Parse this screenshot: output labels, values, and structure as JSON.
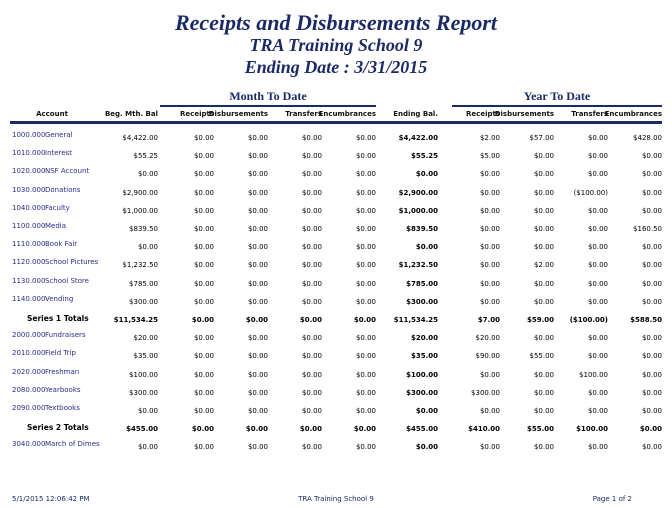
{
  "report": {
    "title": "Receipts and Disbursements Report",
    "school": "TRA Training School 9",
    "ending_date": "Ending Date :  3/31/2015"
  },
  "groups": {
    "mtd": "Month To Date",
    "ytd": "Year To Date"
  },
  "columns": [
    "Account",
    "Beg. Mth. Bal",
    "Receipts",
    "Disbursements",
    "Transfers",
    "Encumbrances",
    "Ending Bal.",
    "Receipts",
    "Disbursements",
    "Transfers",
    "Encumbrances"
  ],
  "rows": [
    {
      "type": "account",
      "num": "1000.000",
      "name": "General",
      "values": [
        "$4,422.00",
        "$0.00",
        "$0.00",
        "$0.00",
        "$0.00",
        "$4,422.00",
        "$2.00",
        "$57.00",
        "$0.00",
        "$428.00"
      ]
    },
    {
      "type": "account",
      "num": "1010.000",
      "name": "Interest",
      "values": [
        "$55.25",
        "$0.00",
        "$0.00",
        "$0.00",
        "$0.00",
        "$55.25",
        "$5.00",
        "$0.00",
        "$0.00",
        "$0.00"
      ]
    },
    {
      "type": "account",
      "num": "1020.000",
      "name": "NSF Account",
      "values": [
        "$0.00",
        "$0.00",
        "$0.00",
        "$0.00",
        "$0.00",
        "$0.00",
        "$0.00",
        "$0.00",
        "$0.00",
        "$0.00"
      ]
    },
    {
      "type": "account",
      "num": "1030.000",
      "name": "Donations",
      "values": [
        "$2,900.00",
        "$0.00",
        "$0.00",
        "$0.00",
        "$0.00",
        "$2,900.00",
        "$0.00",
        "$0.00",
        "($100.00)",
        "$0.00"
      ]
    },
    {
      "type": "account",
      "num": "1040.000",
      "name": "Faculty",
      "values": [
        "$1,000.00",
        "$0.00",
        "$0.00",
        "$0.00",
        "$0.00",
        "$1,000.00",
        "$0.00",
        "$0.00",
        "$0.00",
        "$0.00"
      ]
    },
    {
      "type": "account",
      "num": "1100.000",
      "name": "Media",
      "values": [
        "$839.50",
        "$0.00",
        "$0.00",
        "$0.00",
        "$0.00",
        "$839.50",
        "$0.00",
        "$0.00",
        "$0.00",
        "$160.50"
      ]
    },
    {
      "type": "account",
      "num": "1110.000",
      "name": "Book Fair",
      "values": [
        "$0.00",
        "$0.00",
        "$0.00",
        "$0.00",
        "$0.00",
        "$0.00",
        "$0.00",
        "$0.00",
        "$0.00",
        "$0.00"
      ]
    },
    {
      "type": "account",
      "num": "1120.000",
      "name": "School Pictures",
      "values": [
        "$1,232.50",
        "$0.00",
        "$0.00",
        "$0.00",
        "$0.00",
        "$1,232.50",
        "$0.00",
        "$2.00",
        "$0.00",
        "$0.00"
      ]
    },
    {
      "type": "account",
      "num": "1130.000",
      "name": "School Store",
      "values": [
        "$785.00",
        "$0.00",
        "$0.00",
        "$0.00",
        "$0.00",
        "$785.00",
        "$0.00",
        "$0.00",
        "$0.00",
        "$0.00"
      ]
    },
    {
      "type": "account",
      "num": "1140.000",
      "name": "Vending",
      "values": [
        "$300.00",
        "$0.00",
        "$0.00",
        "$0.00",
        "$0.00",
        "$300.00",
        "$0.00",
        "$0.00",
        "$0.00",
        "$0.00"
      ]
    },
    {
      "type": "total",
      "name": "Series 1 Totals",
      "values": [
        "$11,534.25",
        "$0.00",
        "$0.00",
        "$0.00",
        "$0.00",
        "$11,534.25",
        "$7.00",
        "$59.00",
        "($100.00)",
        "$588.50"
      ]
    },
    {
      "type": "account",
      "num": "2000.000",
      "name": "Fundraisers",
      "values": [
        "$20.00",
        "$0.00",
        "$0.00",
        "$0.00",
        "$0.00",
        "$20.00",
        "$20.00",
        "$0.00",
        "$0.00",
        "$0.00"
      ]
    },
    {
      "type": "account",
      "num": "2010.000",
      "name": "Field Trip",
      "values": [
        "$35.00",
        "$0.00",
        "$0.00",
        "$0.00",
        "$0.00",
        "$35.00",
        "$90.00",
        "$55.00",
        "$0.00",
        "$0.00"
      ]
    },
    {
      "type": "account",
      "num": "2020.000",
      "name": "Freshman",
      "values": [
        "$100.00",
        "$0.00",
        "$0.00",
        "$0.00",
        "$0.00",
        "$100.00",
        "$0.00",
        "$0.00",
        "$100.00",
        "$0.00"
      ]
    },
    {
      "type": "account",
      "num": "2080.000",
      "name": "Yearbooks",
      "values": [
        "$300.00",
        "$0.00",
        "$0.00",
        "$0.00",
        "$0.00",
        "$300.00",
        "$300.00",
        "$0.00",
        "$0.00",
        "$0.00"
      ]
    },
    {
      "type": "account",
      "num": "2090.000",
      "name": "Textbooks",
      "values": [
        "$0.00",
        "$0.00",
        "$0.00",
        "$0.00",
        "$0.00",
        "$0.00",
        "$0.00",
        "$0.00",
        "$0.00",
        "$0.00"
      ]
    },
    {
      "type": "total",
      "name": "Series 2 Totals",
      "values": [
        "$455.00",
        "$0.00",
        "$0.00",
        "$0.00",
        "$0.00",
        "$455.00",
        "$410.00",
        "$55.00",
        "$100.00",
        "$0.00"
      ]
    },
    {
      "type": "account",
      "num": "3040.000",
      "name": "March of Dimes",
      "values": [
        "$0.00",
        "$0.00",
        "$0.00",
        "$0.00",
        "$0.00",
        "$0.00",
        "$0.00",
        "$0.00",
        "$0.00",
        "$0.00"
      ]
    }
  ],
  "footer": {
    "timestamp": "5/1/2015 12:06:42 PM",
    "school": "TRA Training School 9",
    "page": "Page 1 of 2"
  }
}
